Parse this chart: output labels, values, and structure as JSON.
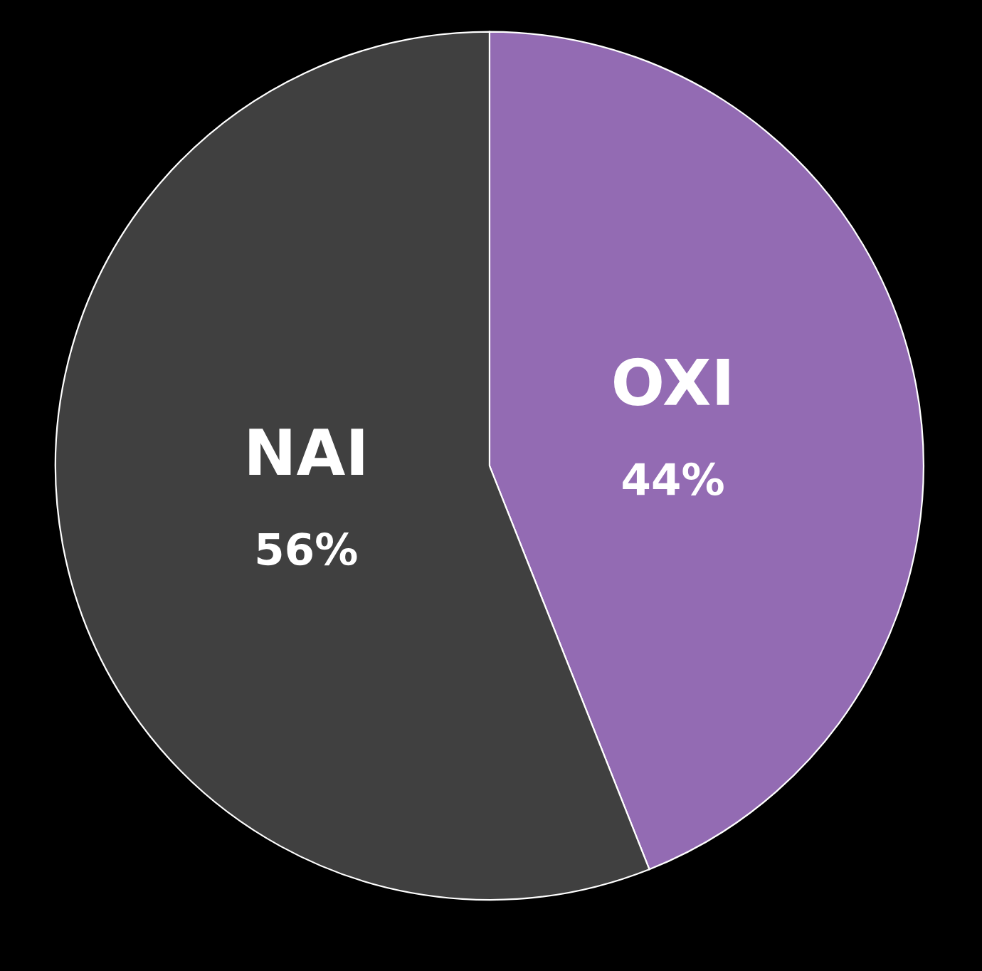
{
  "chart_data": {
    "type": "pie",
    "categories": [
      "OXI",
      "NAI"
    ],
    "values": [
      44,
      56
    ],
    "colors": [
      "#936bb3",
      "#404040"
    ],
    "value_labels": [
      "44%",
      "56%"
    ],
    "legend": false
  }
}
